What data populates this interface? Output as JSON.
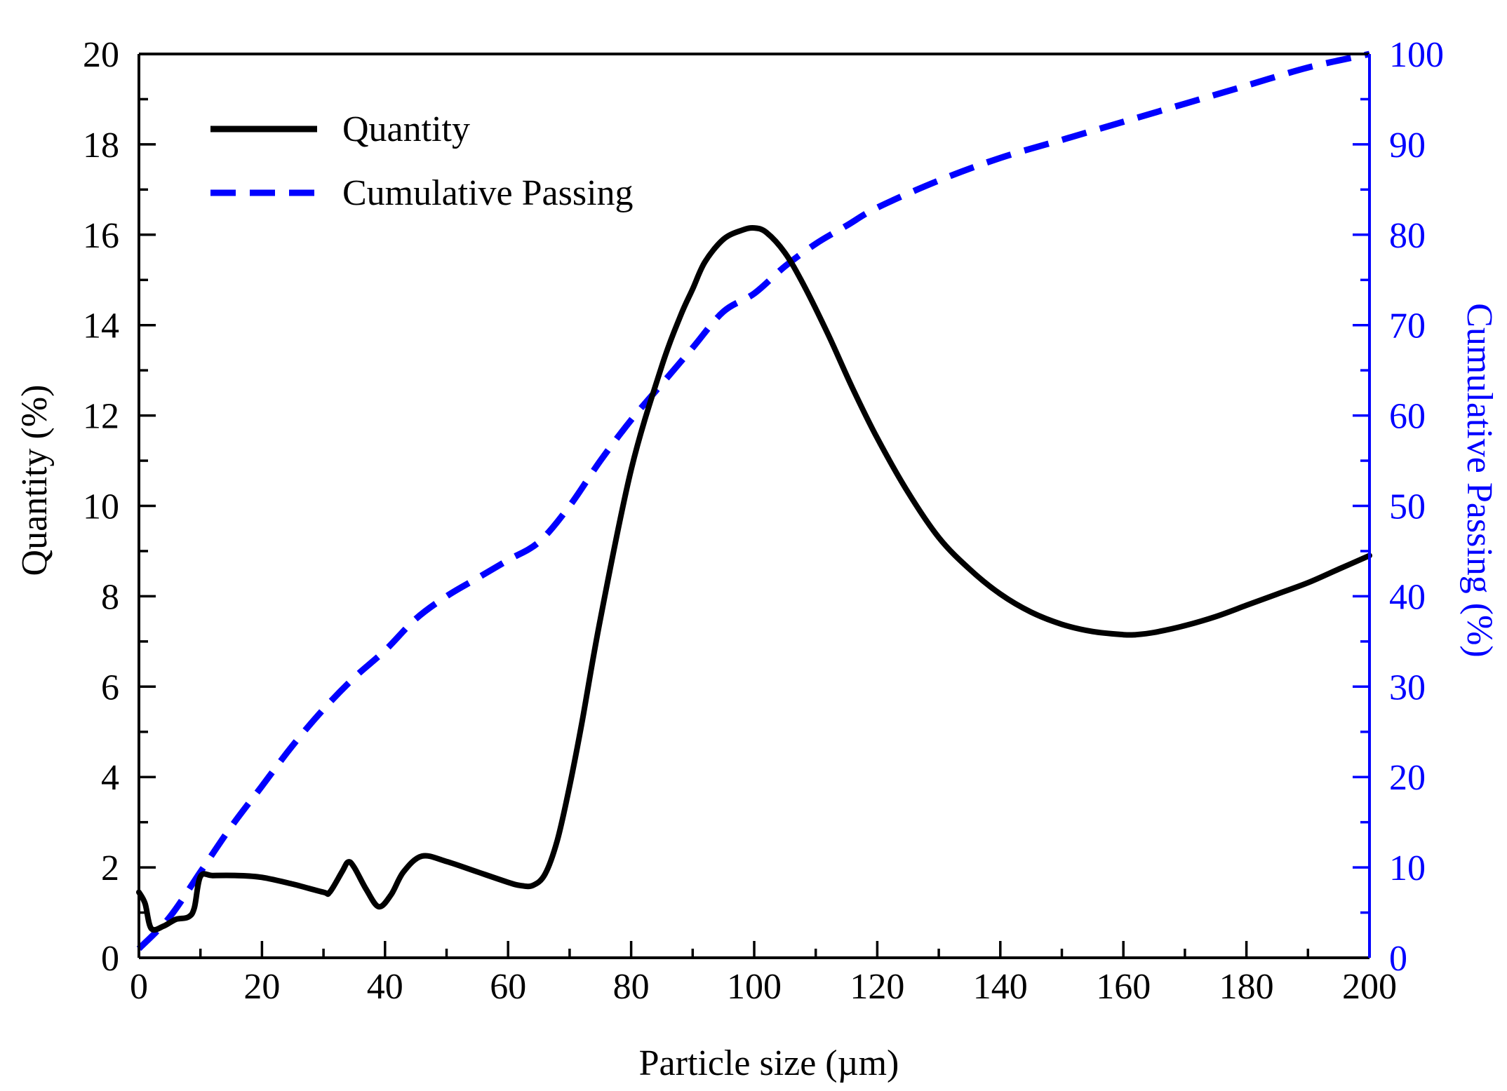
{
  "colors": {
    "quantity": "#000000",
    "cumulative": "#0000ff",
    "axis_left": "#000000",
    "axis_right": "#0000ff",
    "background": "#ffffff"
  },
  "chart_data": {
    "type": "line",
    "title": "",
    "xlabel": "Particle size (µm)",
    "ylabel": "Quantity (%)",
    "ylabel_right": "Cumulative Passing (%)",
    "xlim": [
      0,
      200
    ],
    "ylim": [
      0,
      20
    ],
    "ylim_right": [
      0,
      100
    ],
    "grid": false,
    "legend_position": "top-left",
    "x_ticks": [
      0,
      20,
      40,
      60,
      80,
      100,
      120,
      140,
      160,
      180,
      200
    ],
    "x_tick_labels": [
      "0",
      "20",
      "40",
      "60",
      "80",
      "100",
      "120",
      "140",
      "160",
      "180",
      "200"
    ],
    "y_ticks": [
      0,
      2,
      4,
      6,
      8,
      10,
      12,
      14,
      16,
      18,
      20
    ],
    "y_tick_labels": [
      "0",
      "2",
      "4",
      "6",
      "8",
      "10",
      "12",
      "14",
      "16",
      "18",
      "20"
    ],
    "y_right_ticks": [
      0,
      10,
      20,
      30,
      40,
      50,
      60,
      70,
      80,
      90,
      100
    ],
    "y_right_tick_labels": [
      "0",
      "10",
      "20",
      "30",
      "40",
      "50",
      "60",
      "70",
      "80",
      "90",
      "100"
    ],
    "series": [
      {
        "name": "Quantity",
        "axis": "left",
        "style": "solid",
        "x": [
          0,
          1,
          2,
          4,
          6,
          8,
          9,
          10,
          12,
          16,
          20,
          25,
          30,
          31,
          33,
          34,
          35,
          37,
          39,
          41,
          43,
          46,
          50,
          55,
          60,
          62,
          64,
          66,
          68,
          70,
          72,
          75,
          80,
          85,
          88,
          90,
          92,
          95,
          98,
          100,
          102,
          105,
          108,
          112,
          116,
          120,
          125,
          130,
          135,
          140,
          145,
          150,
          155,
          160,
          162,
          165,
          170,
          175,
          180,
          185,
          190,
          195,
          200
        ],
        "y": [
          1.45,
          1.2,
          0.65,
          0.7,
          0.85,
          0.9,
          1.1,
          1.8,
          1.82,
          1.82,
          1.78,
          1.63,
          1.45,
          1.45,
          1.9,
          2.12,
          2.0,
          1.5,
          1.13,
          1.4,
          1.9,
          2.25,
          2.13,
          1.9,
          1.67,
          1.6,
          1.6,
          1.85,
          2.6,
          3.8,
          5.2,
          7.5,
          10.8,
          13.1,
          14.2,
          14.8,
          15.4,
          15.9,
          16.1,
          16.15,
          16.05,
          15.6,
          14.9,
          13.8,
          12.6,
          11.5,
          10.3,
          9.3,
          8.6,
          8.05,
          7.65,
          7.38,
          7.22,
          7.15,
          7.15,
          7.2,
          7.35,
          7.55,
          7.8,
          8.05,
          8.3,
          8.6,
          8.9
        ]
      },
      {
        "name": "Cumulative Passing",
        "axis": "right",
        "style": "dashed",
        "x": [
          0,
          5,
          10,
          15,
          20,
          25,
          30,
          35,
          40,
          45,
          50,
          55,
          60,
          65,
          70,
          75,
          80,
          85,
          90,
          95,
          100,
          105,
          110,
          115,
          120,
          130,
          140,
          150,
          160,
          170,
          180,
          190,
          200
        ],
        "y": [
          1,
          4.5,
          9.5,
          14.5,
          19,
          23.5,
          27.5,
          31,
          34,
          37.5,
          40,
          42,
          44,
          46,
          50,
          55,
          59.5,
          63.5,
          67.5,
          71.5,
          73.5,
          76.5,
          79,
          81,
          83,
          86,
          88.5,
          90.5,
          92.5,
          94.5,
          96.5,
          98.5,
          100
        ]
      }
    ]
  }
}
